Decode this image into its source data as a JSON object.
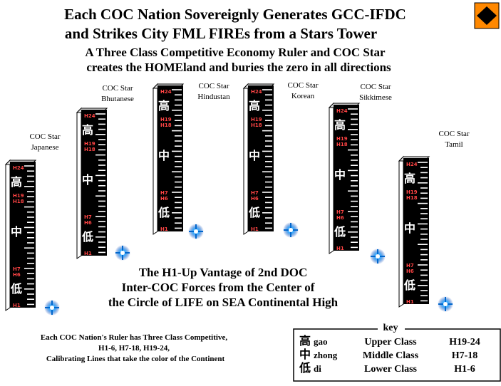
{
  "header": {
    "title": [
      "Each COC Nation Sovereignly Generates GCC-IFDC",
      "and Strikes City FML FIREs from a Stars Tower"
    ],
    "subtitle": [
      "A Three Class Competitive Economy Ruler and COC Star",
      "creates the HOMEland and buries the zero in all directions"
    ]
  },
  "ruler": {
    "h24": "H24",
    "high": "高",
    "h19": "H19",
    "h18": "H18",
    "middle": "中",
    "h7": "H7",
    "h6": "H6",
    "low": "低",
    "h1": "H1"
  },
  "towers": [
    {
      "label": [
        "COC Star",
        "Japanese"
      ]
    },
    {
      "label": [
        "COC Star",
        "Bhutanese"
      ]
    },
    {
      "label": [
        "COC Star",
        "Hindustan"
      ]
    },
    {
      "label": [
        "COC Star",
        "Korean"
      ]
    },
    {
      "label": [
        "COC Star",
        "Sikkimese"
      ]
    },
    {
      "label": [
        "COC Star",
        "Tamil"
      ]
    }
  ],
  "center_text": [
    "The H1-Up Vantage of 2nd DOC",
    "Inter-COC Forces from the Center of",
    "the Circle of LIFE on SEA Continental High"
  ],
  "note": [
    "Each COC Nation's Ruler has Three Class Competitive,",
    "H1-6, H7-18, H19-24,",
    "Calibrating Lines that take the color of the Continent"
  ],
  "key": {
    "title": "key",
    "rows": [
      [
        "高",
        "gao",
        "Upper Class",
        "H19-24"
      ],
      [
        "中",
        "zhong",
        "Middle Class",
        "H7-18"
      ],
      [
        "低",
        "di",
        "Lower Class",
        "H1-6"
      ]
    ]
  }
}
